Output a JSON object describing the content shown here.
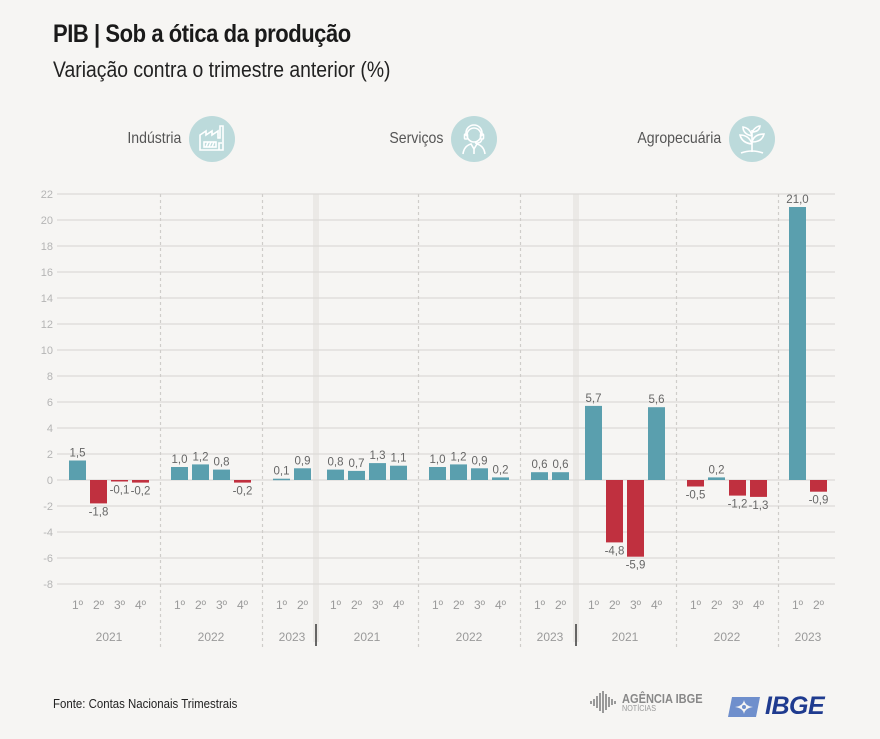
{
  "header": {
    "title": "PIB | Sob a ótica da produção",
    "subtitle": "Variação contra o trimestre anterior (%)"
  },
  "footer": {
    "source": "Fonte: Contas Nacionais Trimestrais",
    "logo_agencia_main": "AGÊNCIA IBGE",
    "logo_agencia_sub": "NOTÍCIAS",
    "logo_ibge": "IBGE"
  },
  "colors": {
    "positive": "#5a9fae",
    "negative": "#c0303f",
    "icon_bg": "#bcdadb",
    "grid": "#dddbd8"
  },
  "chart_data": {
    "type": "bar",
    "title": "PIB | Sob a ótica da produção",
    "subtitle": "Variação contra o trimestre anterior (%)",
    "xlabel": "",
    "ylabel": "",
    "ylim": [
      -8,
      22
    ],
    "yticks": [
      -8,
      -6,
      -4,
      -2,
      0,
      2,
      4,
      6,
      8,
      10,
      12,
      14,
      16,
      18,
      20,
      22
    ],
    "grid": true,
    "legend": "none",
    "panels": [
      {
        "name": "Indústria",
        "icon": "factory-icon",
        "years": [
          {
            "year": "2021",
            "quarters": [
              "1º",
              "2º",
              "3º",
              "4º"
            ],
            "values": [
              1.5,
              -1.8,
              -0.1,
              -0.2
            ],
            "labels": [
              "1,5",
              "-1,8",
              "-0,1",
              "-0,2"
            ]
          },
          {
            "year": "2022",
            "quarters": [
              "1º",
              "2º",
              "3º",
              "4º"
            ],
            "values": [
              1.0,
              1.2,
              0.8,
              -0.2
            ],
            "labels": [
              "1,0",
              "1,2",
              "0,8",
              "-0,2"
            ]
          },
          {
            "year": "2023",
            "quarters": [
              "1º",
              "2º"
            ],
            "values": [
              0.1,
              0.9
            ],
            "labels": [
              "0,1",
              "0,9"
            ]
          }
        ]
      },
      {
        "name": "Serviços",
        "icon": "headset-person-icon",
        "years": [
          {
            "year": "2021",
            "quarters": [
              "1º",
              "2º",
              "3º",
              "4º"
            ],
            "values": [
              0.8,
              0.7,
              1.3,
              1.1
            ],
            "labels": [
              "0,8",
              "0,7",
              "1,3",
              "1,1"
            ]
          },
          {
            "year": "2022",
            "quarters": [
              "1º",
              "2º",
              "3º",
              "4º"
            ],
            "values": [
              1.0,
              1.2,
              0.9,
              0.2
            ],
            "labels": [
              "1,0",
              "1,2",
              "0,9",
              "0,2"
            ]
          },
          {
            "year": "2023",
            "quarters": [
              "1º",
              "2º"
            ],
            "values": [
              0.6,
              0.6
            ],
            "labels": [
              "0,6",
              "0,6"
            ]
          }
        ]
      },
      {
        "name": "Agropecuária",
        "icon": "plant-icon",
        "years": [
          {
            "year": "2021",
            "quarters": [
              "1º",
              "2º",
              "3º",
              "4º"
            ],
            "values": [
              5.7,
              -4.8,
              -5.9,
              5.6
            ],
            "labels": [
              "5,7",
              "-4,8",
              "-5,9",
              "5,6"
            ]
          },
          {
            "year": "2022",
            "quarters": [
              "1º",
              "2º",
              "3º",
              "4º"
            ],
            "values": [
              -0.5,
              0.2,
              -1.2,
              -1.3
            ],
            "labels": [
              "-0,5",
              "0,2",
              "-1,2",
              "-1,3"
            ]
          },
          {
            "year": "2023",
            "quarters": [
              "1º",
              "2º"
            ],
            "values": [
              21.0,
              -0.9
            ],
            "labels": [
              "21,0",
              "-0,9"
            ]
          }
        ]
      }
    ]
  }
}
